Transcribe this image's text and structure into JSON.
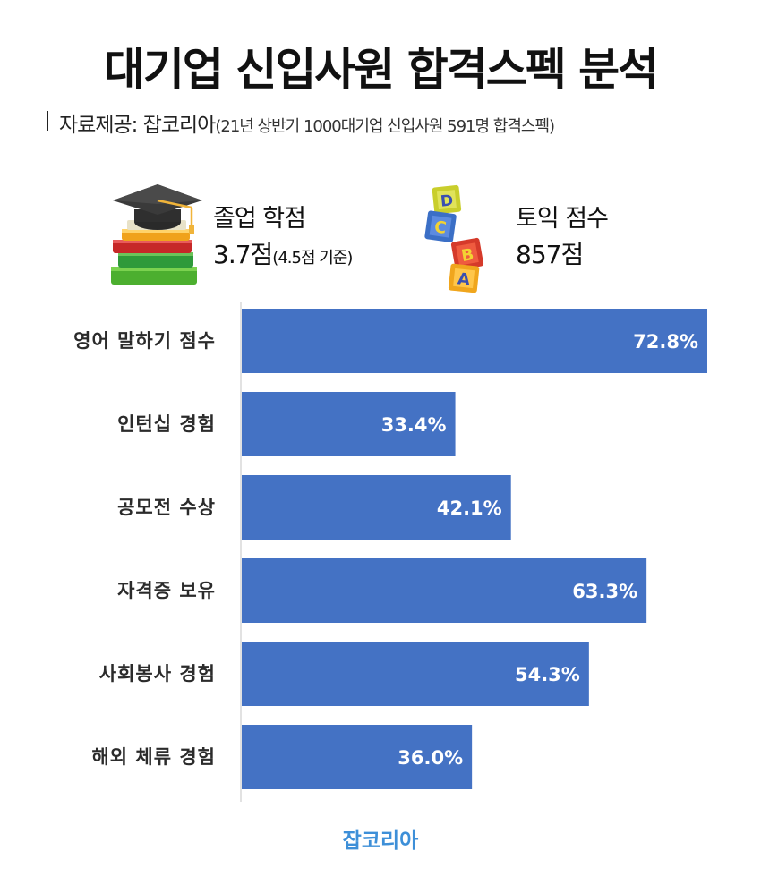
{
  "title": "대기업 신입사원 합격스펙 분석",
  "source": {
    "main": "자료제공: 잡코리아",
    "detail": "(21년 상반기 1000대기업 신입사원 591명 합격스펙)"
  },
  "stats": [
    {
      "label": "졸업 학점",
      "value": "3.7점",
      "note": "(4.5점 기준)",
      "icon": "graduation-cap-books-icon"
    },
    {
      "label": "토익 점수",
      "value": "857점",
      "note": "",
      "icon": "abcd-blocks-icon"
    }
  ],
  "colors": {
    "bar": "#4472c4",
    "footer": "#3d8fd8"
  },
  "chart_data": {
    "type": "bar",
    "orientation": "horizontal",
    "categories": [
      "영어 말하기 점수",
      "인턴십 경험",
      "공모전 수상",
      "자격증 보유",
      "사회봉사 경험",
      "해외 체류 경험"
    ],
    "values": [
      72.8,
      33.4,
      42.1,
      63.3,
      54.3,
      36.0
    ],
    "value_labels": [
      "72.8%",
      "33.4%",
      "42.1%",
      "63.3%",
      "54.3%",
      "36.0%"
    ],
    "unit": "%",
    "grid": false,
    "legend": "none"
  },
  "footer": "잡코리아"
}
